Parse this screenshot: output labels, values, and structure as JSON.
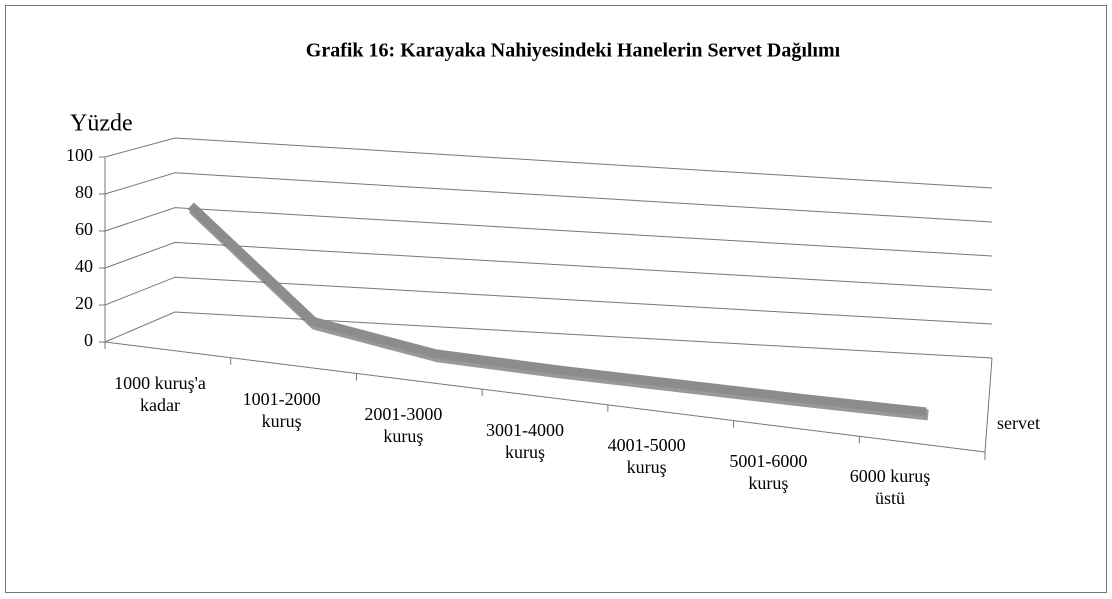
{
  "chart_data": {
    "type": "line3d",
    "title": "Grafik  16: Karayaka Nahiyesindeki Hanelerin Servet Dağılımı",
    "y_label": "Yüzde",
    "categories": [
      "1000 kuruş'a kadar",
      "1001-2000 kuruş",
      "2001-3000 kuruş",
      "3001-4000 kuruş",
      "4001-5000 kuruş",
      "5001-6000 kuruş",
      "6000 kuruş üstü"
    ],
    "series": [
      {
        "name": "servet",
        "color": "#8c8c8c",
        "values": [
          73,
          16,
          5,
          3,
          2,
          1,
          0.5
        ]
      }
    ],
    "ylim": [
      0,
      100
    ],
    "yticks": [
      0,
      20,
      40,
      60,
      80,
      100
    ],
    "grid": true
  }
}
